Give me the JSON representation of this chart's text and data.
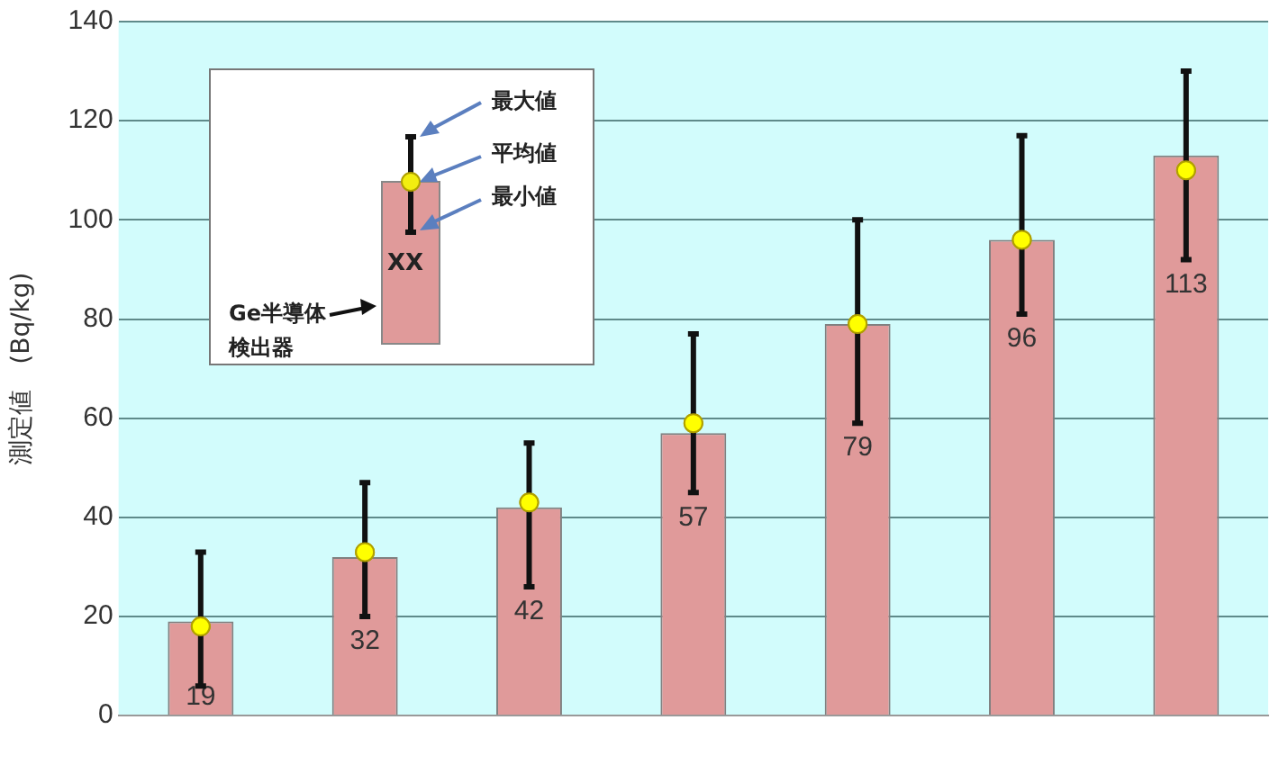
{
  "chart_data": {
    "type": "bar",
    "ylabel": "測定値　(Bq/kg)",
    "categories": [
      null,
      null,
      null,
      null,
      null,
      null,
      null
    ],
    "series": [
      {
        "color": "#e09a9a",
        "values": [
          19,
          32,
          42,
          57,
          79,
          96,
          113
        ],
        "value_labels": [
          "19",
          "32",
          "42",
          "57",
          "79",
          "96",
          "113"
        ]
      },
      {
        "type": "scatter",
        "color": "#ffff00",
        "marker": "circle",
        "values": [
          18,
          33,
          43,
          59,
          79,
          96,
          110
        ],
        "errors": [
          [
            6,
            33
          ],
          [
            20,
            47
          ],
          [
            26,
            55
          ],
          [
            45,
            77
          ],
          [
            59,
            100
          ],
          [
            81,
            117
          ],
          [
            92,
            130
          ]
        ]
      }
    ],
    "ylim": [
      0,
      140
    ],
    "yticks": [
      0,
      20,
      40,
      60,
      80,
      100,
      120,
      140
    ],
    "grid": "y",
    "legend": false,
    "annotations": [
      "最大値",
      "平均値",
      "最小値",
      "XX",
      "Ge半導体検出器"
    ]
  }
}
